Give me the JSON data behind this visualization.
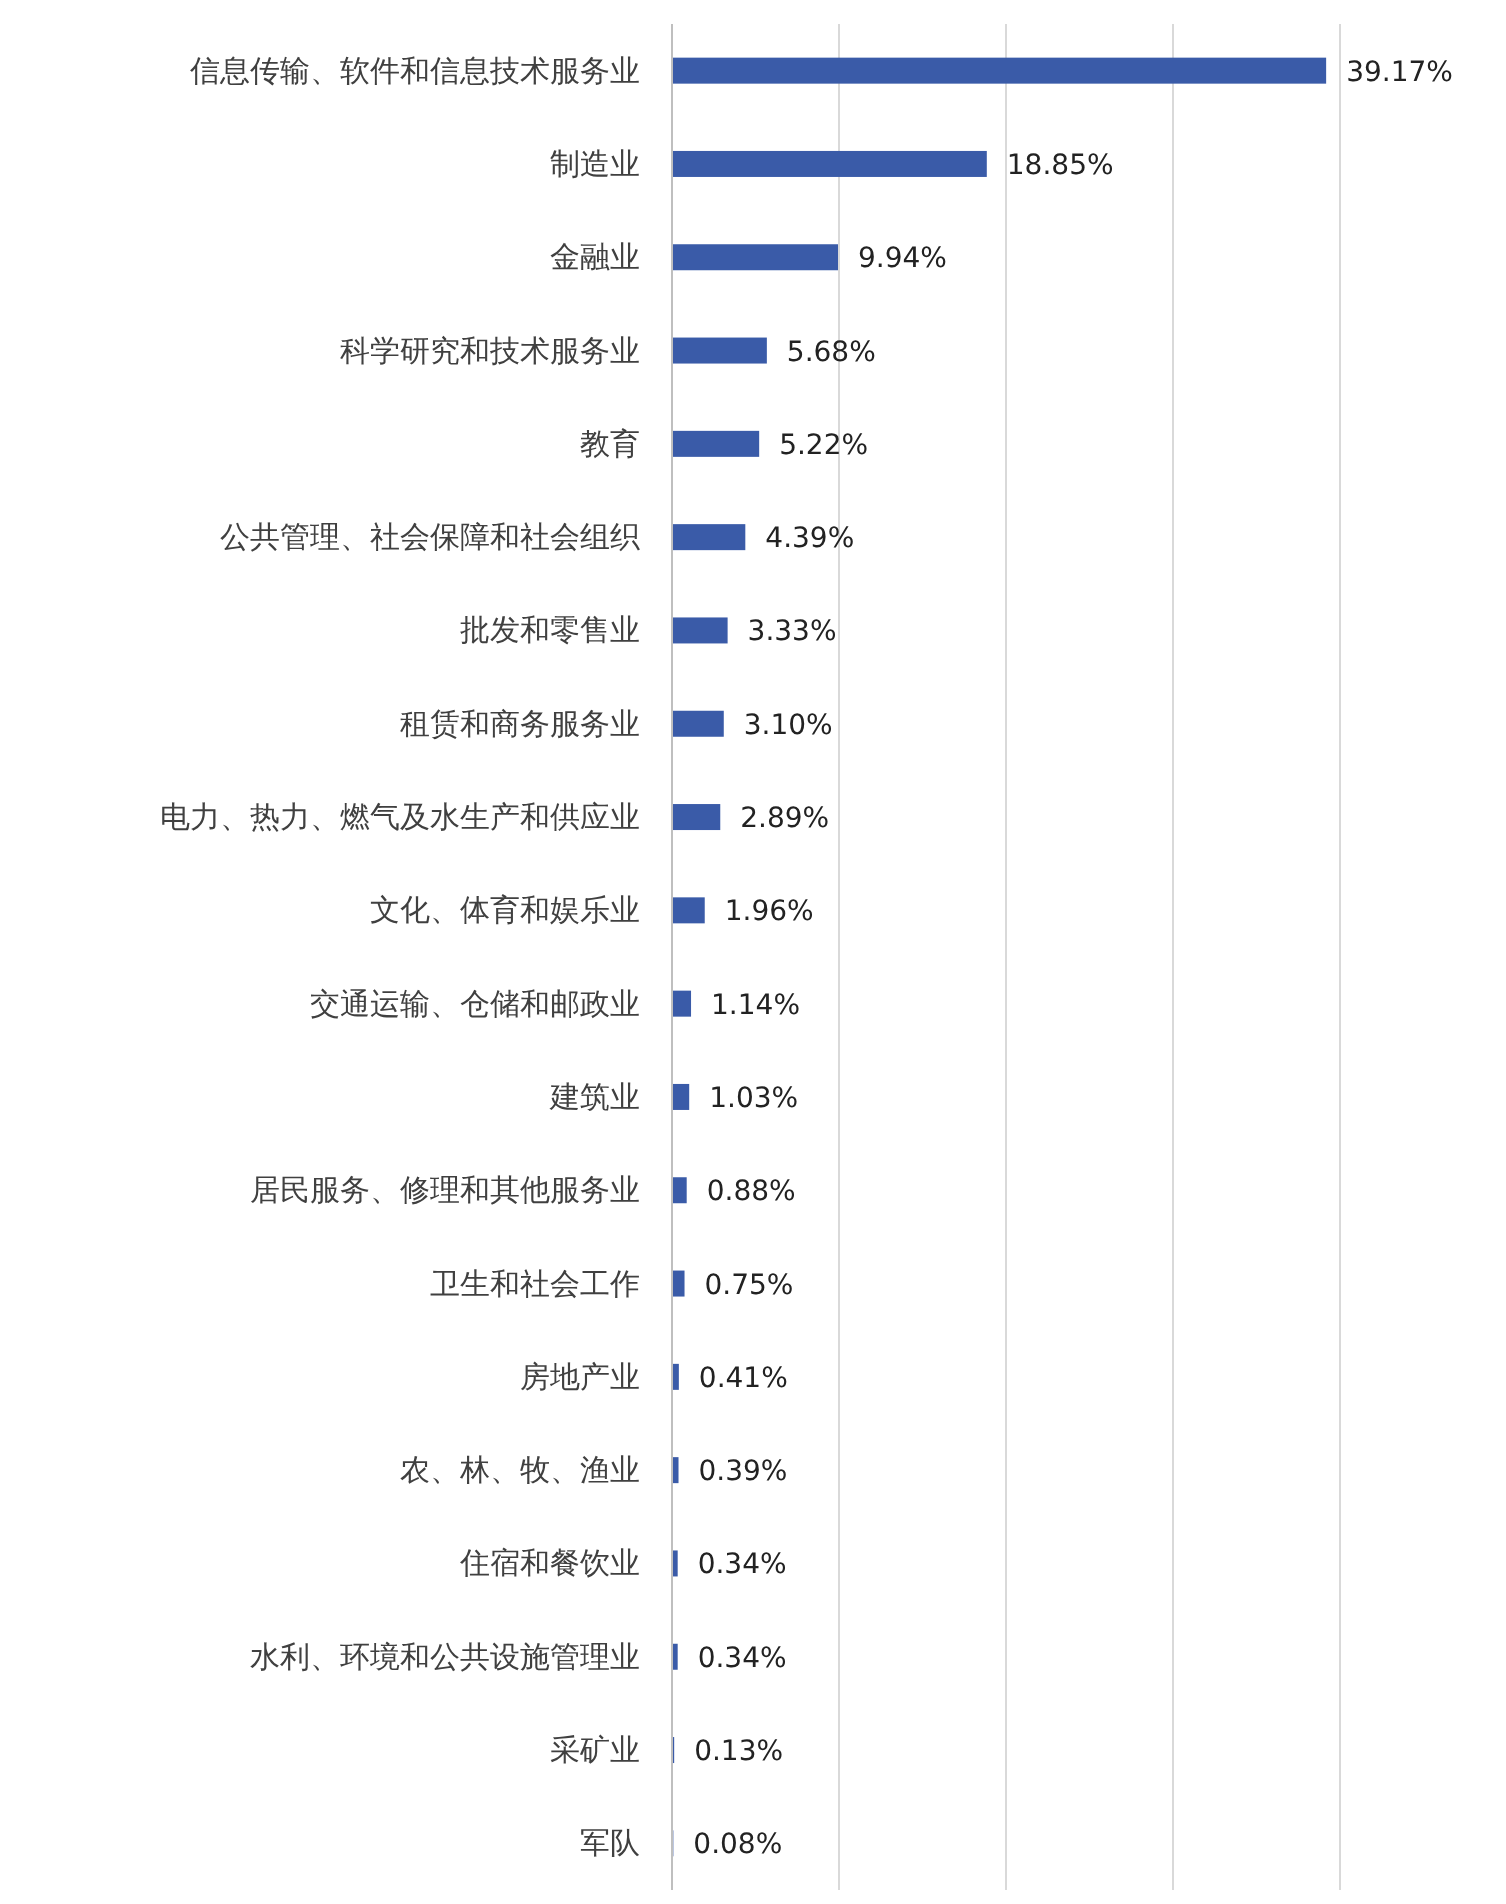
{
  "chart_data": {
    "type": "bar",
    "orientation": "horizontal",
    "categories": [
      "信息传输、软件和信息技术服务业",
      "制造业",
      "金融业",
      "科学研究和技术服务业",
      "教育",
      "公共管理、社会保障和社会组织",
      "批发和零售业",
      "租赁和商务服务业",
      "电力、热力、燃气及水生产和供应业",
      "文化、体育和娱乐业",
      "交通运输、仓储和邮政业",
      "建筑业",
      "居民服务、修理和其他服务业",
      "卫生和社会工作",
      "房地产业",
      "农、林、牧、渔业",
      "住宿和餐饮业",
      "水利、环境和公共设施管理业",
      "采矿业",
      "军队"
    ],
    "values": [
      39.17,
      18.85,
      9.94,
      5.68,
      5.22,
      4.39,
      3.33,
      3.1,
      2.89,
      1.96,
      1.14,
      1.03,
      0.88,
      0.75,
      0.41,
      0.39,
      0.34,
      0.34,
      0.13,
      0.08
    ],
    "value_labels": [
      "39.17%",
      "18.85%",
      "9.94%",
      "5.68%",
      "5.22%",
      "4.39%",
      "3.33%",
      "3.10%",
      "2.89%",
      "1.96%",
      "1.14%",
      "1.03%",
      "0.88%",
      "0.75%",
      "0.41%",
      "0.39%",
      "0.34%",
      "0.34%",
      "0.13%",
      "0.08%"
    ],
    "color": "#3a5ba8",
    "xlim": [
      0,
      40
    ],
    "xticks": [
      {
        "value": 0,
        "label": null
      },
      {
        "value": 10,
        "label": null
      },
      {
        "value": 20,
        "label": null
      },
      {
        "value": 30,
        "label": null
      },
      {
        "value": 40,
        "label": null
      }
    ],
    "grid": "x"
  }
}
